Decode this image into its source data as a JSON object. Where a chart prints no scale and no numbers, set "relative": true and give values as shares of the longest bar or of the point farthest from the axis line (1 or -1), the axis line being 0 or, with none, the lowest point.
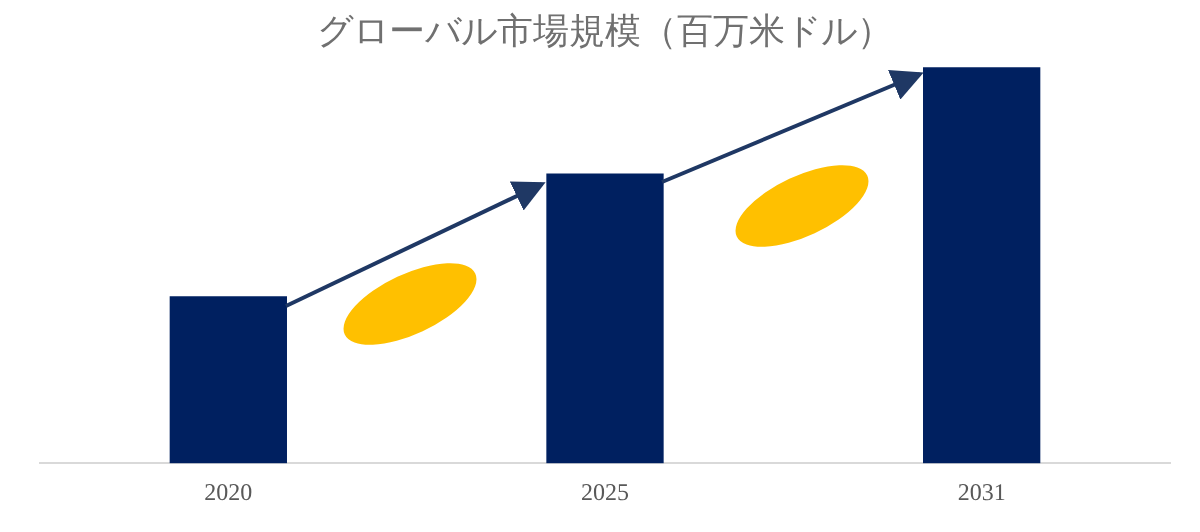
{
  "chart_data": {
    "type": "bar",
    "title": "グローバル市場規模（百万米ドル）",
    "categories": [
      "2020",
      "2025",
      "2031"
    ],
    "values": [
      0.42,
      0.73,
      1
    ],
    "color": "#002060",
    "relative": true,
    "grid": false,
    "legend": false
  }
}
